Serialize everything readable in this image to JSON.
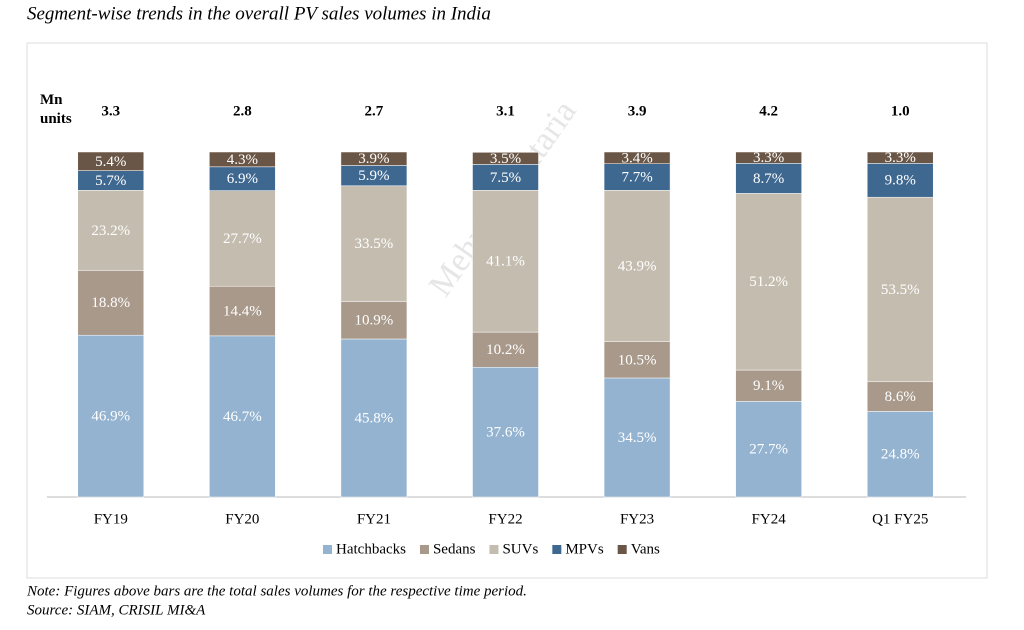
{
  "chart_data": {
    "type": "stacked_bar_100",
    "title": "Segment-wise trends in the overall PV sales volumes in India",
    "total_axis_label": "Mn units",
    "watermark": "Mehul Bhantaria",
    "categories": [
      "FY19",
      "FY20",
      "FY21",
      "FY22",
      "FY23",
      "FY24",
      "Q1 FY25"
    ],
    "totals": [
      3.3,
      2.8,
      2.7,
      3.1,
      3.9,
      4.2,
      1.0
    ],
    "total_labels": [
      "3.3",
      "2.8",
      "2.7",
      "3.1",
      "3.9",
      "4.2",
      "1.0"
    ],
    "ylim": [
      0,
      100
    ],
    "series": [
      {
        "name": "Hatchbacks",
        "color": "#93b3d0",
        "values": [
          46.9,
          46.7,
          45.8,
          37.6,
          34.5,
          27.7,
          24.8
        ],
        "value_labels": [
          "46.9%",
          "46.7%",
          "45.8%",
          "37.6%",
          "34.5%",
          "27.7%",
          "24.8%"
        ]
      },
      {
        "name": "Sedans",
        "color": "#a8998a",
        "values": [
          18.8,
          14.4,
          10.9,
          10.2,
          10.5,
          9.1,
          8.6
        ],
        "value_labels": [
          "18.8%",
          "14.4%",
          "10.9%",
          "10.2%",
          "10.5%",
          "9.1%",
          "8.6%"
        ]
      },
      {
        "name": "SUVs",
        "color": "#c4bcaf",
        "values": [
          23.2,
          27.7,
          33.5,
          41.1,
          43.9,
          51.2,
          53.5
        ],
        "value_labels": [
          "23.2%",
          "27.7%",
          "33.5%",
          "41.1%",
          "43.9%",
          "51.2%",
          "53.5%"
        ]
      },
      {
        "name": "MPVs",
        "color": "#3e6890",
        "values": [
          5.7,
          6.9,
          5.9,
          7.5,
          7.7,
          8.7,
          9.8
        ],
        "value_labels": [
          "5.7%",
          "6.9%",
          "5.9%",
          "7.5%",
          "7.7%",
          "8.7%",
          "9.8%"
        ]
      },
      {
        "name": "Vans",
        "color": "#6a5646",
        "values": [
          5.4,
          4.3,
          3.9,
          3.5,
          3.4,
          3.3,
          3.3
        ],
        "value_labels": [
          "5.4%",
          "4.3%",
          "3.9%",
          "3.5%",
          "3.4%",
          "3.3%",
          "3.3%"
        ]
      }
    ],
    "notes": [
      "Note: Figures above bars are the total sales volumes for the respective time period.",
      "Source: SIAM, CRISIL MI&A"
    ]
  }
}
